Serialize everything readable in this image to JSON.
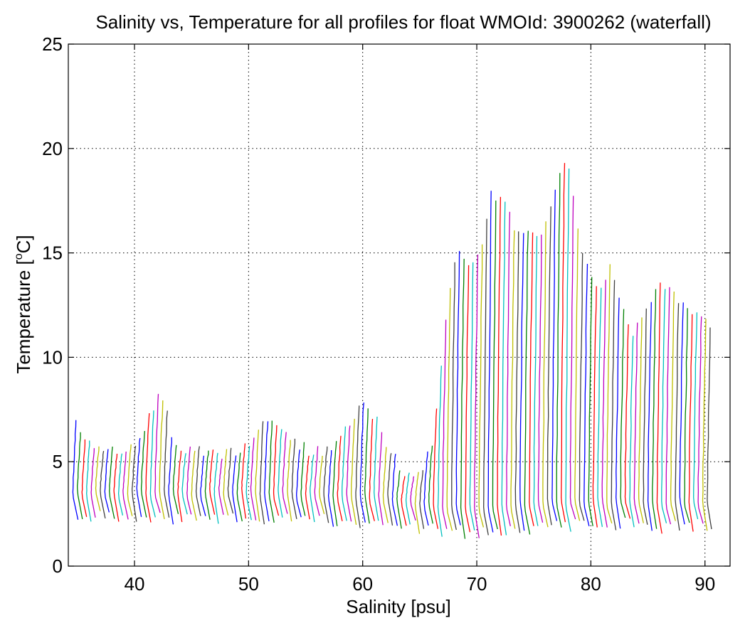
{
  "chart_data": {
    "type": "line",
    "title": "Salinity vs, Temperature for all profiles for float WMOId: 3900262 (waterfall)",
    "xlabel": "Salinity [psu]",
    "ylabel_prefix": "Temperature [",
    "ylabel_sup": "o",
    "ylabel_suffix": "C]",
    "xlim": [
      34.2,
      92.2
    ],
    "ylim": [
      0,
      25
    ],
    "xticks": [
      40,
      50,
      60,
      70,
      80,
      90
    ],
    "xtick_labels": [
      "40",
      "50",
      "60",
      "70",
      "80",
      "90"
    ],
    "yticks": [
      0,
      5,
      10,
      15,
      20,
      25
    ],
    "ytick_labels": [
      "0",
      "5",
      "10",
      "15",
      "20",
      "25"
    ],
    "grid": true,
    "waterfall": {
      "profile_count": 140,
      "first_offset_salinity": 34.6,
      "offset_step": 0.4,
      "colors": [
        "#0000ff",
        "#008000",
        "#ff0000",
        "#00bfbf",
        "#bf00bf",
        "#bfbf00",
        "#3f3f3f"
      ],
      "surface_temperature_anchors": [
        [
          34.6,
          6.9
        ],
        [
          36,
          5.8
        ],
        [
          38,
          5.6
        ],
        [
          40,
          5.7
        ],
        [
          41,
          7.2
        ],
        [
          42,
          8.3
        ],
        [
          43,
          6.4
        ],
        [
          44,
          5.6
        ],
        [
          46,
          5.4
        ],
        [
          48,
          5.4
        ],
        [
          49.5,
          5.6
        ],
        [
          50.5,
          6.7
        ],
        [
          52,
          6.8
        ],
        [
          53.5,
          6.2
        ],
        [
          55,
          5.5
        ],
        [
          57,
          5.6
        ],
        [
          58.5,
          6.9
        ],
        [
          59.5,
          7.8
        ],
        [
          61,
          7.1
        ],
        [
          62,
          5.6
        ],
        [
          63,
          4.8
        ],
        [
          64,
          4.2
        ],
        [
          65,
          4.6
        ],
        [
          66,
          6.4
        ],
        [
          67,
          11.6
        ],
        [
          68,
          15.6
        ],
        [
          69,
          14.2
        ],
        [
          70,
          14.8
        ],
        [
          71,
          17.9
        ],
        [
          72,
          17.4
        ],
        [
          73,
          16.3
        ],
        [
          74,
          15.9
        ],
        [
          75,
          15.9
        ],
        [
          76,
          16.5
        ],
        [
          77,
          18.9
        ],
        [
          77.6,
          19.7
        ],
        [
          78.5,
          16.4
        ],
        [
          79.5,
          14.1
        ],
        [
          80.5,
          13.1
        ],
        [
          81.5,
          14.6
        ],
        [
          82.5,
          12.4
        ],
        [
          83.5,
          11.1
        ],
        [
          84.5,
          12.2
        ],
        [
          85.5,
          13.4
        ],
        [
          86.5,
          13.4
        ],
        [
          87.5,
          12.8
        ],
        [
          88.5,
          12.2
        ],
        [
          89.5,
          11.9
        ],
        [
          90.5,
          11.2
        ],
        [
          91.5,
          10.8
        ]
      ],
      "deep_temperature_anchors": [
        [
          34.6,
          3.6
        ],
        [
          40,
          3.6
        ],
        [
          50,
          3.6
        ],
        [
          55,
          3.5
        ],
        [
          60,
          3.4
        ],
        [
          62,
          3.4
        ],
        [
          64,
          3.2
        ],
        [
          66,
          3.0
        ],
        [
          67,
          2.9
        ],
        [
          69,
          2.9
        ],
        [
          72,
          3.0
        ],
        [
          75,
          3.1
        ],
        [
          80,
          3.2
        ],
        [
          85,
          3.2
        ],
        [
          91.5,
          3.1
        ]
      ]
    }
  }
}
